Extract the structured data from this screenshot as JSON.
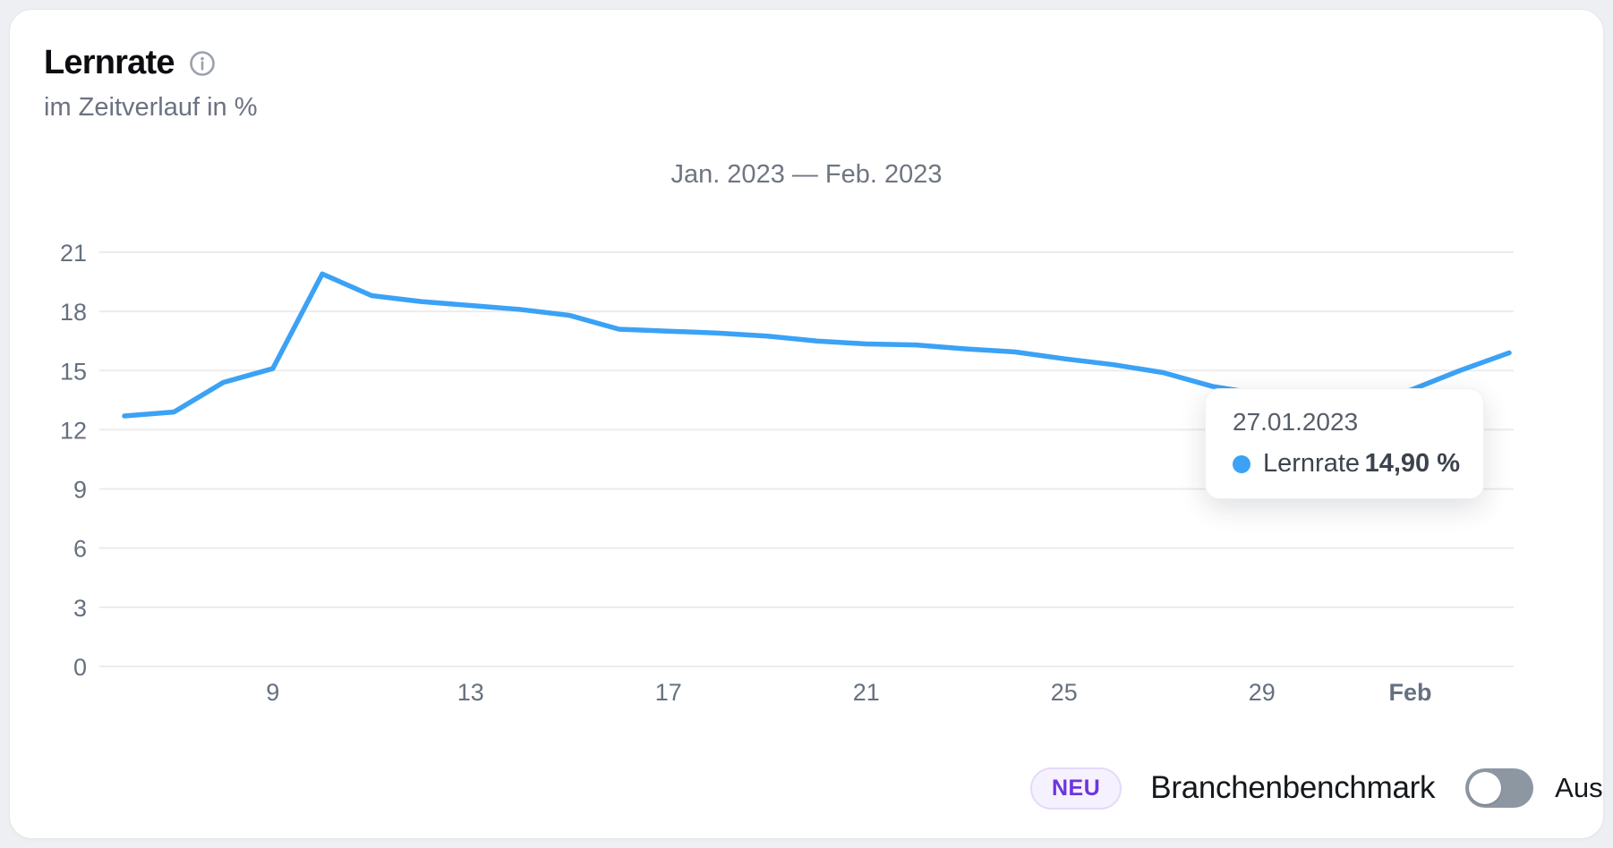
{
  "header": {
    "title": "Lernrate",
    "subtitle": "im Zeitverlauf in %"
  },
  "chart_data": {
    "type": "line",
    "title": "Jan. 2023 — Feb. 2023",
    "unit": "%",
    "grid": true,
    "legend_position": "none",
    "ylim": [
      0,
      21
    ],
    "y_ticks": [
      21,
      18,
      15,
      12,
      9,
      6,
      3,
      0
    ],
    "x": [
      "06.01.2023",
      "07.01.2023",
      "08.01.2023",
      "09.01.2023",
      "10.01.2023",
      "11.01.2023",
      "12.01.2023",
      "13.01.2023",
      "14.01.2023",
      "15.01.2023",
      "16.01.2023",
      "17.01.2023",
      "18.01.2023",
      "19.01.2023",
      "20.01.2023",
      "21.01.2023",
      "22.01.2023",
      "23.01.2023",
      "24.01.2023",
      "25.01.2023",
      "26.01.2023",
      "27.01.2023",
      "28.01.2023",
      "29.01.2023",
      "30.01.2023",
      "31.01.2023",
      "01.02.2023",
      "02.02.2023",
      "03.02.2023"
    ],
    "x_ticks": [
      {
        "label": "9",
        "index": 3,
        "bold": false
      },
      {
        "label": "13",
        "index": 7,
        "bold": false
      },
      {
        "label": "17",
        "index": 11,
        "bold": false
      },
      {
        "label": "21",
        "index": 15,
        "bold": false
      },
      {
        "label": "25",
        "index": 19,
        "bold": false
      },
      {
        "label": "29",
        "index": 23,
        "bold": false
      },
      {
        "label": "Feb",
        "index": 26,
        "bold": true
      }
    ],
    "series": [
      {
        "name": "Lernrate",
        "color": "#3BA2F5",
        "values": [
          12.7,
          12.9,
          14.4,
          15.1,
          19.9,
          18.8,
          18.5,
          18.3,
          18.1,
          17.8,
          17.1,
          17.0,
          16.9,
          16.75,
          16.5,
          16.35,
          16.3,
          16.1,
          15.95,
          15.6,
          15.3,
          14.9,
          14.2,
          13.8,
          13.4,
          13.5,
          14.0,
          15.0,
          15.9
        ]
      }
    ],
    "grid_color": "#ececee",
    "tick_color": "#667080",
    "bold_tick_color": "#242a32"
  },
  "tooltip": {
    "date": "27.01.2023",
    "series": "Lernrate",
    "value": "14,90 %",
    "marker_color": "#3BA2F5"
  },
  "footer": {
    "badge": "NEU",
    "label": "Branchenbenchmark",
    "toggle_state": "Aus",
    "toggle_on": false
  }
}
